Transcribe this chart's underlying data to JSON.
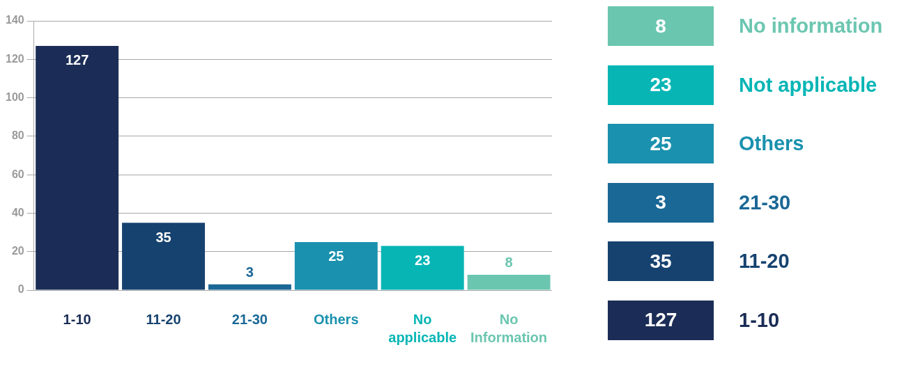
{
  "chart_data": [
    {
      "type": "bar",
      "categories": [
        "1-10",
        "11-20",
        "21-30",
        "Others",
        "No applicable",
        "No Information"
      ],
      "values": [
        127,
        35,
        3,
        25,
        23,
        8
      ],
      "colors": [
        "#1b2d56",
        "#16426f",
        "#1a6896",
        "#1a91ae",
        "#07b5b5",
        "#6bc6b0"
      ],
      "ylim": [
        0,
        140
      ],
      "yticks": [
        0,
        20,
        40,
        60,
        80,
        100,
        120,
        140
      ],
      "grid": "y",
      "data_labels": true,
      "legend": false
    },
    {
      "type": "other",
      "categories": [
        "No information",
        "Not applicable",
        "Others",
        "21-30",
        "11-20",
        "1-10"
      ],
      "values": [
        8,
        23,
        25,
        3,
        35,
        127
      ],
      "colors": [
        "#6bc6b0",
        "#07b5b5",
        "#1a91ae",
        "#1a6896",
        "#16426f",
        "#1b2d56"
      ],
      "data_labels": true
    }
  ]
}
